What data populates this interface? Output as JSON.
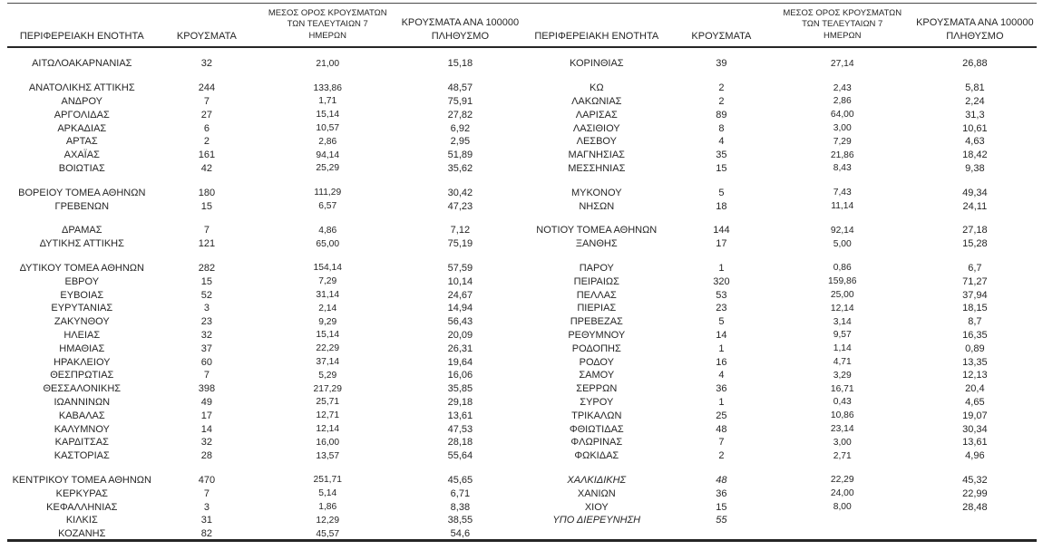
{
  "headers": {
    "region": "ΠΕΡΙΦΕΡΕΙΑΚΗ ΕΝΟΤΗΤΑ",
    "cases": "ΚΡΟΥΣΜΑΤΑ",
    "avg7": "ΜΕΣΟΣ ΟΡΟΣ ΚΡΟΥΣΜΑΤΩΝ\nΤΩΝ ΤΕΛΕΥΤΑΙΩΝ 7\nΗΜΕΡΩΝ",
    "per100k": "ΚΡΟΥΣΜΑΤΑ ΑΝΑ 100000\nΠΛΗΘΥΣΜΟ"
  },
  "colors": {
    "text": "#262626",
    "rule": "#262626",
    "background": "#ffffff"
  },
  "left_table": {
    "rows": [
      {
        "region": "ΑΙΤΩΛΟΑΚΑΡΝΑΝΙΑΣ",
        "cases": "32",
        "avg7": "21,00",
        "per100k": "15,18"
      },
      {
        "region": "ΑΝΑΤΟΛΙΚΗΣ ΑΤΤΙΚΗΣ",
        "cases": "244",
        "avg7": "133,86",
        "per100k": "48,57",
        "gap": true
      },
      {
        "region": "ΑΝΔΡΟΥ",
        "cases": "7",
        "avg7": "1,71",
        "per100k": "75,91"
      },
      {
        "region": "ΑΡΓΟΛΙΔΑΣ",
        "cases": "27",
        "avg7": "15,14",
        "per100k": "27,82"
      },
      {
        "region": "ΑΡΚΑΔΙΑΣ",
        "cases": "6",
        "avg7": "10,57",
        "per100k": "6,92"
      },
      {
        "region": "ΑΡΤΑΣ",
        "cases": "2",
        "avg7": "2,86",
        "per100k": "2,95"
      },
      {
        "region": "ΑΧΑΪΑΣ",
        "cases": "161",
        "avg7": "94,14",
        "per100k": "51,89"
      },
      {
        "region": "ΒΟΙΩΤΙΑΣ",
        "cases": "42",
        "avg7": "25,29",
        "per100k": "35,62"
      },
      {
        "region": "ΒΟΡΕΙΟΥ ΤΟΜΕΑ ΑΘΗΝΩΝ",
        "cases": "180",
        "avg7": "111,29",
        "per100k": "30,42",
        "gap": true
      },
      {
        "region": "ΓΡΕΒΕΝΩΝ",
        "cases": "15",
        "avg7": "6,57",
        "per100k": "47,23"
      },
      {
        "region": "ΔΡΑΜΑΣ",
        "cases": "7",
        "avg7": "4,86",
        "per100k": "7,12",
        "gap": true
      },
      {
        "region": "ΔΥΤΙΚΗΣ ΑΤΤΙΚΗΣ",
        "cases": "121",
        "avg7": "65,00",
        "per100k": "75,19"
      },
      {
        "region": "ΔΥΤΙΚΟΥ ΤΟΜΕΑ ΑΘΗΝΩΝ",
        "cases": "282",
        "avg7": "154,14",
        "per100k": "57,59",
        "gap": true
      },
      {
        "region": "ΕΒΡΟΥ",
        "cases": "15",
        "avg7": "7,29",
        "per100k": "10,14"
      },
      {
        "region": "ΕΥΒΟΙΑΣ",
        "cases": "52",
        "avg7": "31,14",
        "per100k": "24,67"
      },
      {
        "region": "ΕΥΡΥΤΑΝΙΑΣ",
        "cases": "3",
        "avg7": "2,14",
        "per100k": "14,94"
      },
      {
        "region": "ΖΑΚΥΝΘΟΥ",
        "cases": "23",
        "avg7": "9,29",
        "per100k": "56,43"
      },
      {
        "region": "ΗΛΕΙΑΣ",
        "cases": "32",
        "avg7": "15,14",
        "per100k": "20,09"
      },
      {
        "region": "ΗΜΑΘΙΑΣ",
        "cases": "37",
        "avg7": "22,29",
        "per100k": "26,31"
      },
      {
        "region": "ΗΡΑΚΛΕΙΟΥ",
        "cases": "60",
        "avg7": "37,14",
        "per100k": "19,64"
      },
      {
        "region": "ΘΕΣΠΡΩΤΙΑΣ",
        "cases": "7",
        "avg7": "5,29",
        "per100k": "16,06"
      },
      {
        "region": "ΘΕΣΣΑΛΟΝΙΚΗΣ",
        "cases": "398",
        "avg7": "217,29",
        "per100k": "35,85"
      },
      {
        "region": "ΙΩΑΝΝΙΝΩΝ",
        "cases": "49",
        "avg7": "25,71",
        "per100k": "29,18"
      },
      {
        "region": "ΚΑΒΑΛΑΣ",
        "cases": "17",
        "avg7": "12,71",
        "per100k": "13,61"
      },
      {
        "region": "ΚΑΛΥΜΝΟΥ",
        "cases": "14",
        "avg7": "12,14",
        "per100k": "47,53"
      },
      {
        "region": "ΚΑΡΔΙΤΣΑΣ",
        "cases": "32",
        "avg7": "16,00",
        "per100k": "28,18"
      },
      {
        "region": "ΚΑΣΤΟΡΙΑΣ",
        "cases": "28",
        "avg7": "13,57",
        "per100k": "55,64"
      },
      {
        "region": "ΚΕΝΤΡΙΚΟΥ ΤΟΜΕΑ ΑΘΗΝΩΝ",
        "cases": "470",
        "avg7": "251,71",
        "per100k": "45,65",
        "gap": true
      },
      {
        "region": "ΚΕΡΚΥΡΑΣ",
        "cases": "7",
        "avg7": "5,14",
        "per100k": "6,71"
      },
      {
        "region": "ΚΕΦΑΛΛΗΝΙΑΣ",
        "cases": "3",
        "avg7": "1,86",
        "per100k": "8,38"
      },
      {
        "region": "ΚΙΛΚΙΣ",
        "cases": "31",
        "avg7": "12,29",
        "per100k": "38,55"
      },
      {
        "region": "ΚΟΖΑΝΗΣ",
        "cases": "82",
        "avg7": "45,57",
        "per100k": "54,6"
      }
    ]
  },
  "right_table": {
    "rows": [
      {
        "region": "ΚΟΡΙΝΘΙΑΣ",
        "cases": "39",
        "avg7": "27,14",
        "per100k": "26,88"
      },
      {
        "region": "ΚΩ",
        "cases": "2",
        "avg7": "2,43",
        "per100k": "5,81",
        "gap": true
      },
      {
        "region": "ΛΑΚΩΝΙΑΣ",
        "cases": "2",
        "avg7": "2,86",
        "per100k": "2,24"
      },
      {
        "region": "ΛΑΡΙΣΑΣ",
        "cases": "89",
        "avg7": "64,00",
        "per100k": "31,3"
      },
      {
        "region": "ΛΑΣΙΘΙΟΥ",
        "cases": "8",
        "avg7": "3,00",
        "per100k": "10,61"
      },
      {
        "region": "ΛΕΣΒΟΥ",
        "cases": "4",
        "avg7": "7,29",
        "per100k": "4,63"
      },
      {
        "region": "ΜΑΓΝΗΣΙΑΣ",
        "cases": "35",
        "avg7": "21,86",
        "per100k": "18,42"
      },
      {
        "region": "ΜΕΣΣΗΝΙΑΣ",
        "cases": "15",
        "avg7": "8,43",
        "per100k": "9,38"
      },
      {
        "region": "ΜΥΚΟΝΟΥ",
        "cases": "5",
        "avg7": "7,43",
        "per100k": "49,34",
        "gap": true
      },
      {
        "region": "ΝΗΣΩΝ",
        "cases": "18",
        "avg7": "11,14",
        "per100k": "24,11"
      },
      {
        "region": "ΝΟΤΙΟΥ ΤΟΜΕΑ ΑΘΗΝΩΝ",
        "cases": "144",
        "avg7": "92,14",
        "per100k": "27,18",
        "gap": true
      },
      {
        "region": "ΞΑΝΘΗΣ",
        "cases": "17",
        "avg7": "5,00",
        "per100k": "15,28"
      },
      {
        "region": "ΠΑΡΟΥ",
        "cases": "1",
        "avg7": "0,86",
        "per100k": "6,7",
        "gap": true
      },
      {
        "region": "ΠΕΙΡΑΙΩΣ",
        "cases": "320",
        "avg7": "159,86",
        "per100k": "71,27"
      },
      {
        "region": "ΠΕΛΛΑΣ",
        "cases": "53",
        "avg7": "25,00",
        "per100k": "37,94"
      },
      {
        "region": "ΠΙΕΡΙΑΣ",
        "cases": "23",
        "avg7": "12,14",
        "per100k": "18,15"
      },
      {
        "region": "ΠΡΕΒΕΖΑΣ",
        "cases": "5",
        "avg7": "3,14",
        "per100k": "8,7"
      },
      {
        "region": "ΡΕΘΥΜΝΟΥ",
        "cases": "14",
        "avg7": "9,57",
        "per100k": "16,35"
      },
      {
        "region": "ΡΟΔΟΠΗΣ",
        "cases": "1",
        "avg7": "1,14",
        "per100k": "0,89"
      },
      {
        "region": "ΡΟΔΟΥ",
        "cases": "16",
        "avg7": "4,71",
        "per100k": "13,35"
      },
      {
        "region": "ΣΑΜΟΥ",
        "cases": "4",
        "avg7": "3,29",
        "per100k": "12,13"
      },
      {
        "region": "ΣΕΡΡΩΝ",
        "cases": "36",
        "avg7": "16,71",
        "per100k": "20,4"
      },
      {
        "region": "ΣΥΡΟΥ",
        "cases": "1",
        "avg7": "0,43",
        "per100k": "4,65"
      },
      {
        "region": "ΤΡΙΚΑΛΩΝ",
        "cases": "25",
        "avg7": "10,86",
        "per100k": "19,07"
      },
      {
        "region": "ΦΘΙΩΤΙΔΑΣ",
        "cases": "48",
        "avg7": "23,14",
        "per100k": "30,34"
      },
      {
        "region": "ΦΛΩΡΙΝΑΣ",
        "cases": "7",
        "avg7": "3,00",
        "per100k": "13,61"
      },
      {
        "region": "ΦΩΚΙΔΑΣ",
        "cases": "2",
        "avg7": "2,71",
        "per100k": "4,96"
      },
      {
        "region": "ΧΑΛΚΙΔΙΚΗΣ",
        "cases": "48",
        "avg7": "22,29",
        "per100k": "45,32",
        "gap": true,
        "italic": true
      },
      {
        "region": "ΧΑΝΙΩΝ",
        "cases": "36",
        "avg7": "24,00",
        "per100k": "22,99"
      },
      {
        "region": "ΧΙΟΥ",
        "cases": "15",
        "avg7": "8,00",
        "per100k": "28,48"
      },
      {
        "region": "ΥΠΟ ΔΙΕΡΕΥΝΗΣΗ",
        "cases": "55",
        "avg7": "",
        "per100k": "",
        "italic": true
      }
    ]
  }
}
